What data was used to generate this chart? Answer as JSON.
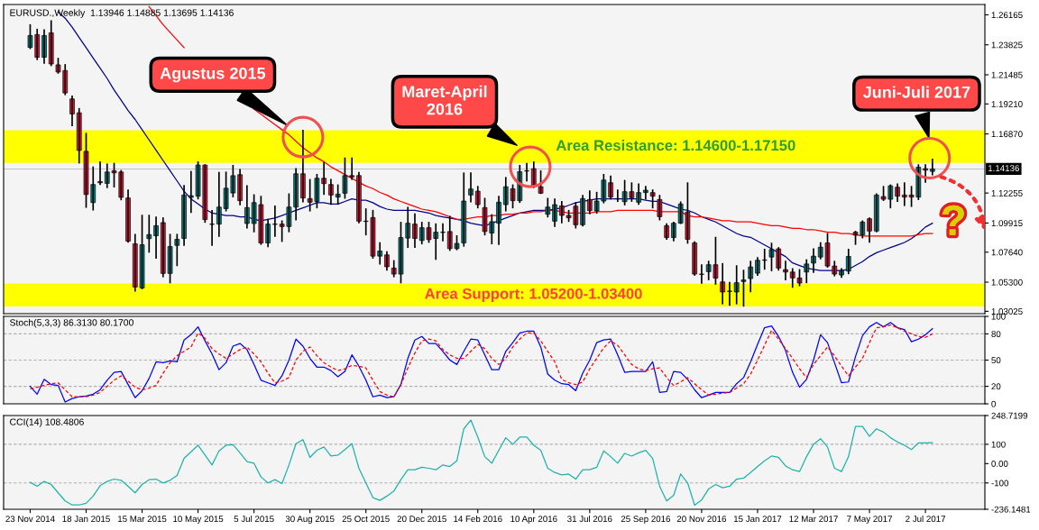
{
  "chart_data": [
    {
      "type": "candlestick",
      "title": "EURUSD.,Weekly  1.13946 1.14885 1.13695 1.14136",
      "categories": [
        null,
        null,
        null,
        null,
        null,
        null,
        null,
        null,
        null,
        null,
        null,
        null,
        null,
        null,
        null,
        null,
        null,
        null,
        null,
        null,
        null,
        null,
        null,
        null,
        null,
        null,
        null,
        null,
        null,
        null,
        null,
        null,
        null,
        null,
        null,
        null,
        null,
        null,
        null,
        null,
        null,
        null,
        null,
        null,
        null,
        null,
        null,
        null,
        null,
        null,
        null,
        null,
        null,
        null,
        null,
        null,
        null,
        null,
        null,
        null,
        null,
        null,
        null,
        null,
        null,
        null,
        null,
        null,
        null,
        null,
        null,
        null,
        null,
        null,
        null,
        null,
        null,
        null,
        null,
        null,
        null,
        null,
        null,
        null,
        null,
        null,
        null,
        null,
        null,
        null,
        null,
        null,
        null,
        null,
        null,
        null,
        null,
        null,
        null,
        null,
        null,
        null,
        null,
        null,
        null,
        null,
        null,
        null,
        null,
        null,
        null,
        null,
        null,
        null,
        null,
        null,
        null,
        null,
        null,
        null,
        null,
        null,
        null,
        null,
        null,
        null,
        null,
        null,
        null,
        null
      ],
      "ohlc": [
        [
          1.2362,
          1.2537,
          1.2355,
          1.2455
        ],
        [
          1.2462,
          1.2502,
          1.2269,
          1.2285
        ],
        [
          1.2285,
          1.2497,
          1.2241,
          1.2455
        ],
        [
          1.2476,
          1.2568,
          1.2222,
          1.2233
        ],
        [
          1.2226,
          1.2275,
          1.2163,
          1.217
        ],
        [
          1.2182,
          1.2226,
          1.1995,
          1.2007
        ],
        [
          1.196,
          1.1981,
          1.1754,
          1.1843
        ],
        [
          1.1852,
          1.1883,
          1.1462,
          1.1558
        ],
        [
          1.1551,
          1.1689,
          1.1116,
          1.1214
        ],
        [
          1.1151,
          1.1427,
          1.1095,
          1.1292
        ],
        [
          1.1315,
          1.1467,
          1.1294,
          1.1306
        ],
        [
          1.1301,
          1.145,
          1.127,
          1.139
        ],
        [
          1.1399,
          1.1455,
          1.1275,
          1.1383
        ],
        [
          1.139,
          1.1399,
          1.1175,
          1.1192
        ],
        [
          1.1187,
          1.1248,
          1.0843,
          1.085
        ],
        [
          1.0829,
          1.0901,
          1.0462,
          1.0492
        ],
        [
          1.0485,
          1.105,
          1.048,
          1.0822
        ],
        [
          1.087,
          1.105,
          1.0766,
          1.0901
        ],
        [
          1.0892,
          1.1037,
          1.0719,
          1.0971
        ],
        [
          1.0995,
          1.103,
          1.0574,
          1.0598
        ],
        [
          1.0598,
          1.0901,
          1.0527,
          1.0808
        ],
        [
          1.0817,
          1.0901,
          1.0661,
          1.0864
        ],
        [
          1.0871,
          1.1282,
          1.0819,
          1.121
        ],
        [
          1.1191,
          1.1392,
          1.1076,
          1.1205
        ],
        [
          1.1201,
          1.1467,
          1.1182,
          1.1444
        ],
        [
          1.1444,
          1.1444,
          1.0999,
          1.1018
        ],
        [
          1.0983,
          1.1088,
          1.0819,
          1.0981
        ],
        [
          1.0983,
          1.1385,
          1.0889,
          1.1116
        ],
        [
          1.1104,
          1.1387,
          1.1088,
          1.1263
        ],
        [
          1.1226,
          1.1439,
          1.1198,
          1.1361
        ],
        [
          1.1369,
          1.1408,
          1.1135,
          1.1166
        ],
        [
          1.0988,
          1.128,
          1.0955,
          1.1112
        ],
        [
          1.0988,
          1.121,
          1.0925,
          1.1151
        ],
        [
          1.1135,
          1.1198,
          1.0827,
          1.0836
        ],
        [
          1.0836,
          1.1018,
          1.0808,
          1.0983
        ],
        [
          1.0983,
          1.1123,
          1.0889,
          1.0981
        ],
        [
          1.0983,
          1.1006,
          1.085,
          1.0964
        ],
        [
          1.0964,
          1.1217,
          1.0925,
          1.1116
        ],
        [
          1.1116,
          1.1415,
          1.1018,
          1.1376
        ],
        [
          1.1376,
          1.1714,
          1.1158,
          1.1187
        ],
        [
          1.1182,
          1.1329,
          1.1088,
          1.1154
        ],
        [
          1.1158,
          1.1369,
          1.1112,
          1.1341
        ],
        [
          1.1341,
          1.1462,
          1.1217,
          1.1299
        ],
        [
          1.1292,
          1.1329,
          1.114,
          1.121
        ],
        [
          1.1194,
          1.1287,
          1.114,
          1.1217
        ],
        [
          1.1224,
          1.1497,
          1.1187,
          1.1362
        ],
        [
          1.1362,
          1.1497,
          1.1334,
          1.135
        ],
        [
          1.1362,
          1.1385,
          1.0995,
          1.1006
        ],
        [
          1.1006,
          1.11,
          1.0901,
          1.1004
        ],
        [
          1.1034,
          1.1088,
          1.0719,
          1.0733
        ],
        [
          1.0733,
          1.0836,
          1.0673,
          1.0773
        ],
        [
          1.0743,
          1.0766,
          1.0626,
          1.065
        ],
        [
          1.064,
          1.0696,
          1.0574,
          1.0593
        ],
        [
          1.0593,
          1.0995,
          1.0527,
          1.0878
        ],
        [
          1.0874,
          1.1112,
          1.0803,
          1.099
        ],
        [
          1.0983,
          1.106,
          1.0803,
          1.0871
        ],
        [
          1.0855,
          1.0995,
          1.0831,
          1.0955
        ],
        [
          1.0955,
          1.0995,
          1.0843,
          1.0862
        ],
        [
          1.0871,
          1.0983,
          1.071,
          1.092
        ],
        [
          1.092,
          1.0983,
          1.0855,
          1.0918
        ],
        [
          1.0925,
          1.1042,
          1.078,
          1.0792
        ],
        [
          1.0792,
          1.089,
          1.0785,
          1.0832
        ],
        [
          1.0836,
          1.138,
          1.0813,
          1.1163
        ],
        [
          1.121,
          1.138,
          1.1158,
          1.1257
        ],
        [
          1.124,
          1.1275,
          1.1112,
          1.1135
        ],
        [
          1.1112,
          1.1182,
          1.0901,
          1.0925
        ],
        [
          1.0913,
          1.1054,
          1.0831,
          1.1002
        ],
        [
          1.099,
          1.1198,
          1.0827,
          1.1154
        ],
        [
          1.1135,
          1.1345,
          1.1088,
          1.1275
        ],
        [
          1.1259,
          1.1287,
          1.1112,
          1.1166
        ],
        [
          1.1166,
          1.1439,
          1.1154,
          1.1392
        ],
        [
          1.1399,
          1.1455,
          1.1322,
          1.1397
        ],
        [
          1.1416,
          1.1467,
          1.127,
          1.1282
        ],
        [
          1.1275,
          1.1397,
          1.1224,
          1.1224
        ],
        [
          1.106,
          1.1182,
          1.1041,
          1.1116
        ],
        [
          1.1006,
          1.1177,
          1.0967,
          1.1135
        ],
        [
          1.1126,
          1.1158,
          1.0995,
          1.1051
        ],
        [
          1.1051,
          1.1088,
          1.1006,
          1.1032
        ],
        [
          1.1123,
          1.1147,
          1.0955,
          1.0978
        ],
        [
          1.0978,
          1.1205,
          1.0971,
          1.1182
        ],
        [
          1.1175,
          1.124,
          1.1065,
          1.1088
        ],
        [
          1.1086,
          1.1229,
          1.107,
          1.1163
        ],
        [
          1.1163,
          1.1369,
          1.1151,
          1.1327
        ],
        [
          1.1306,
          1.1357,
          1.1182,
          1.1194
        ],
        [
          1.1182,
          1.1248,
          1.1163,
          1.118
        ],
        [
          1.1158,
          1.1322,
          1.1135,
          1.1236
        ],
        [
          1.1236,
          1.1303,
          1.1163,
          1.1189
        ],
        [
          1.1154,
          1.1294,
          1.114,
          1.1229
        ],
        [
          1.1229,
          1.1275,
          1.1182,
          1.1248
        ],
        [
          1.1229,
          1.1248,
          1.1112,
          1.1201
        ],
        [
          1.1175,
          1.1205,
          1.1018,
          1.1041
        ],
        [
          1.0971,
          1.0983,
          1.0866,
          1.0878
        ],
        [
          1.0878,
          1.0995,
          1.0855,
          1.099
        ],
        [
          1.099,
          1.1154,
          1.099,
          1.114
        ],
        [
          1.1077,
          1.1303,
          1.0836,
          1.0864
        ],
        [
          1.0836,
          1.0843,
          1.0586,
          1.0593
        ],
        [
          1.0593,
          1.0663,
          1.0523,
          1.0591
        ],
        [
          1.0612,
          1.0691,
          1.0551,
          1.0666
        ],
        [
          1.0666,
          1.0878,
          1.0516,
          1.0561
        ],
        [
          1.0532,
          1.0673,
          1.0363,
          1.0453
        ],
        [
          1.046,
          1.0526,
          1.0352,
          1.0458
        ],
        [
          1.0453,
          1.0656,
          1.0363,
          1.0526
        ],
        [
          1.0535,
          1.0621,
          1.0345,
          1.0547
        ],
        [
          1.0558,
          1.0691,
          1.0457,
          1.0649
        ],
        [
          1.06,
          1.0719,
          1.0586,
          1.0701
        ],
        [
          1.0703,
          1.0785,
          1.0633,
          1.0701
        ],
        [
          1.0726,
          1.0832,
          1.0621,
          1.0785
        ],
        [
          1.079,
          1.0797,
          1.0626,
          1.064
        ],
        [
          1.0628,
          1.0691,
          1.0551,
          1.0609
        ],
        [
          1.0609,
          1.0633,
          1.0492,
          1.0563
        ],
        [
          1.0563,
          1.0626,
          1.0504,
          1.0523
        ],
        [
          1.0609,
          1.0703,
          1.0528,
          1.0672
        ],
        [
          1.0679,
          1.0789,
          1.0609,
          1.0733
        ],
        [
          1.0726,
          1.0836,
          1.0714,
          1.0803
        ],
        [
          1.0836,
          1.0908,
          1.0649,
          1.0656
        ],
        [
          1.0656,
          1.0691,
          1.0581,
          1.0593
        ],
        [
          1.0586,
          1.0633,
          1.057,
          1.0621
        ],
        [
          1.0616,
          1.0785,
          1.0598,
          1.0731
        ],
        [
          1.092,
          1.0925,
          1.0827,
          1.0897
        ],
        [
          1.0899,
          1.1006,
          1.0878,
          1.0999
        ],
        [
          1.1025,
          1.103,
          1.0843,
          1.0929
        ],
        [
          1.0929,
          1.1217,
          1.0925,
          1.121
        ],
        [
          1.1198,
          1.1275,
          1.117,
          1.1177
        ],
        [
          1.1177,
          1.1287,
          1.1112,
          1.1282
        ],
        [
          1.1271,
          1.1294,
          1.1163,
          1.1201
        ],
        [
          1.121,
          1.1303,
          1.113,
          1.1194
        ],
        [
          1.121,
          1.1275,
          1.1123,
          1.1194
        ],
        [
          1.1194,
          1.1444,
          1.1177,
          1.1427
        ],
        [
          1.1416,
          1.1444,
          1.1311,
          1.1404
        ],
        [
          1.13946,
          1.14885,
          1.13695,
          1.14136
        ]
      ],
      "colors": [
        "#008080",
        "#dc143c",
        "#008080",
        "#dc143c",
        "#dc143c",
        "#dc143c",
        "#dc143c",
        "#dc143c",
        "#dc143c",
        "#008080",
        "#dc143c",
        "#008080",
        "#dc143c",
        "#dc143c",
        "#dc143c",
        "#dc143c",
        "#008080",
        "#008080",
        "#008080",
        "#dc143c",
        "#008080",
        "#008080",
        "#008080",
        "#008080",
        "#008080",
        "#dc143c",
        "#dc143c",
        "#008080",
        "#008080",
        "#008080",
        "#dc143c",
        "#008080",
        "#008080",
        "#dc143c",
        "#008080",
        "#dc143c",
        "#dc143c",
        "#008080",
        "#008080",
        "#dc143c",
        "#dc143c",
        "#008080",
        "#dc143c",
        "#dc143c",
        "#008080",
        "#008080",
        "#dc143c",
        "#dc143c",
        "#dc143c",
        "#dc143c",
        "#008080",
        "#dc143c",
        "#dc143c",
        "#008080",
        "#008080",
        "#dc143c",
        "#008080",
        "#dc143c",
        "#008080",
        "#dc143c",
        "#dc143c",
        "#008080",
        "#008080",
        "#008080",
        "#dc143c",
        "#dc143c",
        "#008080",
        "#008080",
        "#008080",
        "#dc143c",
        "#008080",
        "#dc143c",
        "#dc143c",
        "#dc143c",
        "#008080",
        "#008080",
        "#dc143c",
        "#dc143c",
        "#dc143c",
        "#008080",
        "#dc143c",
        "#008080",
        "#008080",
        "#dc143c",
        "#dc143c",
        "#008080",
        "#dc143c",
        "#008080",
        "#008080",
        "#dc143c",
        "#dc143c",
        "#dc143c",
        "#008080",
        "#008080",
        "#dc143c",
        "#dc143c",
        "#dc143c",
        "#008080",
        "#dc143c",
        "#dc143c",
        "#dc143c",
        "#008080",
        "#008080",
        "#008080",
        "#008080",
        "#dc143c",
        "#008080",
        "#dc143c",
        "#dc143c",
        "#dc143c",
        "#dc143c",
        "#008080",
        "#008080",
        "#008080",
        "#dc143c",
        "#dc143c",
        "#008080",
        "#008080",
        "#dc143c",
        "#008080",
        "#dc143c",
        "#008080",
        "#dc143c",
        "#008080",
        "#dc143c",
        "#dc143c",
        "#dc143c",
        "#008080",
        "#dc143c",
        "#008080"
      ],
      "series": [
        {
          "type": "line",
          "color": "#00008b",
          "values": [
            null,
            null,
            null,
            null,
            1.264,
            1.259,
            1.252,
            1.244,
            1.236,
            1.228,
            1.22,
            1.212,
            1.203,
            1.195,
            1.187,
            1.18,
            1.172,
            1.164,
            1.156,
            1.148,
            1.14,
            1.132,
            1.124,
            1.118,
            1.114,
            1.11,
            1.107,
            1.106,
            1.105,
            1.105,
            1.104,
            1.104,
            1.102,
            1.101,
            1.102,
            1.103,
            1.105,
            1.107,
            1.109,
            1.111,
            1.113,
            1.115,
            1.115,
            1.114,
            1.114,
            1.116,
            1.118,
            1.117,
            1.117,
            1.115,
            1.112,
            1.11,
            1.109,
            1.109,
            1.109,
            1.109,
            1.108,
            1.107,
            1.105,
            1.104,
            1.103,
            1.102,
            1.101,
            1.099,
            1.098,
            1.097,
            1.099,
            1.101,
            1.103,
            1.105,
            1.107,
            1.108,
            1.109,
            1.109,
            1.109,
            1.11,
            1.111,
            1.113,
            1.115,
            1.116,
            1.117,
            1.118,
            1.118,
            1.118,
            1.118,
            1.118,
            1.118,
            1.118,
            1.117,
            1.116,
            1.116,
            1.114,
            1.112,
            1.11,
            1.109,
            1.107,
            1.104,
            1.102,
            1.1,
            1.097,
            1.094,
            1.091,
            1.089,
            1.088,
            1.085,
            1.082,
            1.079,
            1.076,
            1.073,
            1.068,
            1.066,
            1.064,
            1.063,
            1.062,
            1.062,
            1.062,
            1.062,
            1.063,
            1.066,
            1.069,
            1.073,
            1.076,
            1.078,
            1.08,
            1.082,
            1.084,
            1.087,
            1.091,
            1.096,
            1.099
          ]
        },
        {
          "type": "line",
          "color": "#ff0000",
          "values": [
            null,
            null,
            null,
            null,
            null,
            null,
            null,
            null,
            null,
            null,
            null,
            null,
            null,
            null,
            null,
            null,
            null,
            1.268,
            1.261,
            1.254,
            1.248,
            1.242,
            1.236,
            null,
            null,
            null,
            null,
            null,
            null,
            null,
            null,
            null,
            1.188,
            1.184,
            1.18,
            1.176,
            1.172,
            1.168,
            1.163,
            1.158,
            1.154,
            1.15,
            1.147,
            1.143,
            1.14,
            1.137,
            1.134,
            1.131,
            1.128,
            1.126,
            1.123,
            1.121,
            1.118,
            1.116,
            1.114,
            1.112,
            1.11,
            1.109,
            1.108,
            1.106,
            1.104,
            1.102,
            1.102,
            1.103,
            1.104,
            1.104,
            1.105,
            1.105,
            1.106,
            1.106,
            1.107,
            1.107,
            1.108,
            1.108,
            1.109,
            1.109,
            1.108,
            1.107,
            1.107,
            1.107,
            1.107,
            1.108,
            1.108,
            1.108,
            1.109,
            1.109,
            1.109,
            1.109,
            1.109,
            1.109,
            1.108,
            1.108,
            1.108,
            1.108,
            1.105,
            1.104,
            1.104,
            1.103,
            1.102,
            1.101,
            1.101,
            1.1,
            1.1,
            1.1,
            1.099,
            1.098,
            1.097,
            1.097,
            1.096,
            1.095,
            1.095,
            1.094,
            1.094,
            1.093,
            1.092,
            1.092,
            1.091,
            1.091,
            1.09,
            1.089,
            1.089,
            1.089,
            1.089,
            1.089,
            1.089,
            1.089,
            1.089,
            1.09,
            1.091,
            1.091
          ]
        }
      ],
      "ylim": [
        1.0284,
        1.2697
      ],
      "yticks": [
        1.26165,
        1.23825,
        1.21485,
        {
          "value": 1.1921,
          "label": "1.19210"
        },
        {
          "value": 1.1687,
          "label": "1.16870"
        },
        1.12255,
        1.09915,
        {
          "value": 1.0764,
          "label": "1.07640"
        },
        {
          "value": 1.053,
          "label": "1.05300"
        },
        1.03025
      ],
      "bands": [
        {
          "axis": "y",
          "from": 1.146,
          "to": 1.1715,
          "label": "Area Resistance: 1.14600-1.17150",
          "color": "#ffff00"
        },
        {
          "axis": "y",
          "from": 1.034,
          "to": 1.052,
          "label": "Area Support: 1.05200-1.03400",
          "color": "#ffff00"
        }
      ],
      "ref_lines": [
        {
          "axis": "y",
          "value": 1.14136,
          "label": "1.14136",
          "color": "#c0c0c0"
        }
      ],
      "annotations": [
        "Agustus 2015",
        "Maret-April\n2016",
        "Juni-Juli 2017",
        "?"
      ],
      "tick_labels": "y"
    },
    {
      "type": "line",
      "title": "Stoch(5,3,3) 86.3130 80.1700",
      "categories": [
        null,
        null,
        null,
        null,
        null,
        null,
        null,
        null,
        null,
        null,
        null,
        null,
        null,
        null,
        null,
        null,
        null,
        null,
        null,
        null,
        null,
        null,
        null,
        null,
        null,
        null,
        null,
        null,
        null,
        null,
        null,
        null,
        null,
        null,
        null,
        null,
        null,
        null,
        null,
        null,
        null,
        null,
        null,
        null,
        null,
        null,
        null,
        null,
        null,
        null,
        null,
        null,
        null,
        null,
        null,
        null,
        null,
        null,
        null,
        null,
        null,
        null,
        null,
        null,
        null,
        null,
        null,
        null,
        null,
        null,
        null,
        null,
        null,
        null,
        null,
        null,
        null,
        null,
        null,
        null,
        null,
        null,
        null,
        null,
        null,
        null,
        null,
        null,
        null,
        null,
        null,
        null,
        null,
        null,
        null,
        null,
        null,
        null,
        null,
        null,
        null,
        null,
        null,
        null,
        null,
        null,
        null,
        null,
        null,
        null,
        null,
        null,
        null,
        null,
        null,
        null,
        null,
        null,
        null,
        null,
        null,
        null,
        null,
        null,
        null,
        null,
        null,
        null,
        null,
        null
      ],
      "series": [
        {
          "color": "#0000ff",
          "values": [
            20,
            11,
            28,
            22,
            21,
            2,
            6,
            8,
            9,
            11,
            16,
            27,
            36,
            37,
            22,
            7,
            15,
            29,
            48,
            47,
            49,
            48,
            73,
            79,
            88,
            72,
            57,
            39,
            47,
            66,
            69,
            62,
            45,
            27,
            24,
            21,
            32,
            50,
            74,
            66,
            52,
            42,
            42,
            38,
            31,
            37,
            56,
            43,
            27,
            8,
            10,
            7,
            8,
            22,
            52,
            73,
            77,
            69,
            69,
            60,
            50,
            45,
            60,
            74,
            73,
            56,
            39,
            39,
            60,
            70,
            81,
            83,
            83,
            65,
            34,
            27,
            23,
            22,
            15,
            35,
            50,
            70,
            73,
            74,
            56,
            36,
            37,
            37,
            37,
            48,
            13,
            14,
            37,
            36,
            28,
            16,
            7,
            10,
            13,
            13,
            13,
            23,
            30,
            48,
            68,
            87,
            89,
            77,
            61,
            36,
            19,
            28,
            50,
            79,
            70,
            47,
            24,
            25,
            54,
            78,
            88,
            93,
            88,
            93,
            87,
            85,
            71,
            74,
            79,
            86
          ]
        },
        {
          "color": "#ff0000",
          "line_style": "dashed",
          "values": [
            17,
            19,
            21,
            23,
            24,
            16,
            8,
            8,
            8,
            10,
            13,
            20,
            27,
            32,
            26,
            19,
            16,
            18,
            21,
            35,
            47,
            55,
            60,
            65,
            81,
            75,
            63,
            57,
            52,
            57,
            62,
            65,
            57,
            48,
            35,
            24,
            26,
            30,
            50,
            60,
            65,
            55,
            47,
            42,
            38,
            40,
            44,
            43,
            41,
            27,
            14,
            10,
            8,
            22,
            41,
            58,
            72,
            74,
            72,
            62,
            56,
            52,
            52,
            60,
            68,
            63,
            52,
            45,
            52,
            65,
            74,
            81,
            81,
            72,
            60,
            48,
            28,
            24,
            22,
            25,
            40,
            52,
            64,
            72,
            67,
            56,
            45,
            40,
            38,
            40,
            41,
            30,
            21,
            25,
            30,
            23,
            16,
            10,
            11,
            12,
            13,
            18,
            23,
            34,
            50,
            67,
            84,
            74,
            63,
            52,
            40,
            30,
            45,
            55,
            65,
            55,
            43,
            32,
            42,
            52,
            70,
            87,
            88,
            90,
            87,
            83,
            80,
            77,
            76,
            80
          ]
        }
      ],
      "ylim": [
        0,
        100
      ],
      "yticks": [
        0,
        20,
        50,
        80,
        100
      ],
      "ref_lines": [
        {
          "axis": "y",
          "value": 20,
          "color": "#b0b0b0",
          "line_style": "dashed"
        },
        {
          "axis": "y",
          "value": 50,
          "color": "#b0b0b0",
          "line_style": "dashed"
        },
        {
          "axis": "y",
          "value": 80,
          "color": "#b0b0b0",
          "line_style": "dashed"
        }
      ],
      "tick_labels": "y"
    },
    {
      "type": "line",
      "title": "CCI(14) 108.4806",
      "categories": [
        "23 Nov 2014",
        null,
        null,
        null,
        null,
        null,
        null,
        null,
        "18 Jan 2015",
        null,
        null,
        null,
        null,
        null,
        null,
        null,
        "15 Mar 2015",
        null,
        null,
        null,
        null,
        null,
        null,
        null,
        "10 May 2015",
        null,
        null,
        null,
        null,
        null,
        null,
        null,
        "5 Jul 2015",
        null,
        null,
        null,
        null,
        null,
        null,
        null,
        "30 Aug 2015",
        null,
        null,
        null,
        null,
        null,
        null,
        null,
        "25 Oct 2015",
        null,
        null,
        null,
        null,
        null,
        null,
        null,
        "20 Dec 2015",
        null,
        null,
        null,
        null,
        null,
        null,
        null,
        "14 Feb 2016",
        null,
        null,
        null,
        null,
        null,
        null,
        null,
        "10 Apr 2016",
        null,
        null,
        null,
        null,
        null,
        null,
        null,
        "31 Jul 2016",
        null,
        null,
        null,
        null,
        null,
        null,
        null,
        "25 Sep 2016",
        null,
        null,
        null,
        null,
        null,
        null,
        null,
        "20 Nov 2016",
        null,
        null,
        null,
        null,
        null,
        null,
        null,
        "15 Jan 2017",
        null,
        null,
        null,
        null,
        null,
        null,
        null,
        "12 Mar 2017",
        null,
        null,
        null,
        null,
        null,
        null,
        null,
        "7 May 2017",
        null,
        null,
        null,
        null,
        null,
        null,
        null,
        "2 Jul 2017",
        null
      ],
      "series": [
        {
          "color": "#20b2aa",
          "values": [
            -97,
            -117,
            -92,
            -108,
            -151,
            -193,
            -214,
            -214,
            -205,
            -168,
            -114,
            -92,
            -80,
            -86,
            -117,
            -151,
            -108,
            -83,
            -80,
            -100,
            -86,
            -61,
            27,
            61,
            95,
            44,
            -7,
            66,
            95,
            98,
            56,
            10,
            2,
            -69,
            -100,
            -83,
            -103,
            -7,
            103,
            124,
            32,
            69,
            86,
            39,
            44,
            73,
            103,
            -24,
            -100,
            -176,
            -190,
            -168,
            -142,
            -83,
            -32,
            -32,
            -19,
            -24,
            -32,
            -7,
            -15,
            14,
            180,
            225,
            137,
            36,
            2,
            69,
            134,
            100,
            137,
            137,
            95,
            69,
            -24,
            -46,
            -58,
            -54,
            -80,
            -32,
            -32,
            -19,
            66,
            36,
            2,
            53,
            39,
            56,
            69,
            27,
            -117,
            -193,
            -164,
            -54,
            -100,
            -215,
            -188,
            -131,
            -108,
            -125,
            -117,
            -80,
            -75,
            -46,
            -15,
            14,
            39,
            32,
            -12,
            -32,
            -41,
            36,
            100,
            129,
            86,
            -24,
            -41,
            36,
            192,
            192,
            141,
            180,
            163,
            134,
            112,
            95,
            73,
            107,
            107,
            108
          ]
        }
      ],
      "ylim": [
        -236.1481,
        248.7199
      ],
      "yticks": [
        {
          "value": 248.7199,
          "label": "248.7199"
        },
        100,
        {
          "value": 0,
          "label": "0.00"
        },
        -100,
        {
          "value": -236.1481,
          "label": "-236.1481"
        }
      ],
      "ref_lines": [
        {
          "axis": "y",
          "value": 100,
          "color": "#b0b0b0",
          "line_style": "dashed"
        },
        {
          "axis": "y",
          "value": -100,
          "color": "#b0b0b0",
          "line_style": "dashed"
        }
      ]
    }
  ]
}
